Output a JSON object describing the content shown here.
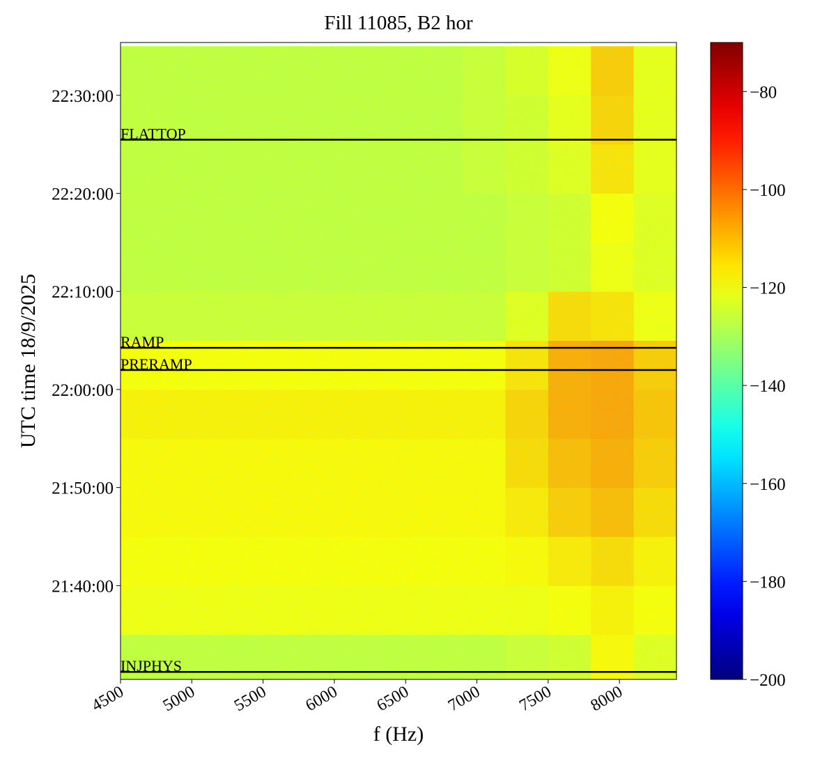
{
  "chart_data": {
    "type": "heatmap",
    "title": "Fill 11085, B2 hor",
    "x_label": "f (Hz)",
    "y_label": "UTC time 18/9/2025",
    "colormap": "jet",
    "xlim": [
      4500,
      8400
    ],
    "xticks": [
      4500,
      5000,
      5500,
      6000,
      6500,
      7000,
      7500,
      8000
    ],
    "ylim": [
      77426,
      81323
    ],
    "yticks": [
      {
        "value": 78000,
        "label": "21:40:00"
      },
      {
        "value": 78600,
        "label": "21:50:00"
      },
      {
        "value": 79200,
        "label": "22:00:00"
      },
      {
        "value": 79800,
        "label": "22:10:00"
      },
      {
        "value": 80400,
        "label": "22:20:00"
      },
      {
        "value": 81000,
        "label": "22:30:00"
      }
    ],
    "zlim": [
      -200,
      -70
    ],
    "zticks": [
      {
        "value": -200,
        "label": "−200"
      },
      {
        "value": -180,
        "label": "−180"
      },
      {
        "value": -160,
        "label": "−160"
      },
      {
        "value": -140,
        "label": "−140"
      },
      {
        "value": -120,
        "label": "−120"
      },
      {
        "value": -100,
        "label": "−100"
      },
      {
        "value": -80,
        "label": "−80"
      }
    ],
    "x_edges": [
      4500,
      4800,
      5100,
      5400,
      5700,
      6000,
      6300,
      6600,
      6900,
      7200,
      7500,
      7800,
      8100,
      8400
    ],
    "y_edges": [
      77400,
      77700,
      78000,
      78300,
      78600,
      78900,
      79200,
      79500,
      79800,
      80100,
      80400,
      80700,
      81000,
      81300
    ],
    "z": [
      [
        -126,
        -126,
        -126,
        -126,
        -126,
        -126,
        -126,
        -126,
        -126,
        -125,
        -124,
        -118,
        -122
      ],
      [
        -120,
        -120,
        -120,
        -120,
        -120,
        -120,
        -120,
        -120,
        -120,
        -120,
        -119,
        -117,
        -119
      ],
      [
        -119,
        -119,
        -119,
        -119,
        -119,
        -119,
        -119,
        -119,
        -119,
        -118,
        -116,
        -114,
        -117
      ],
      [
        -118,
        -118,
        -118,
        -118,
        -118,
        -118,
        -118,
        -118,
        -118,
        -116,
        -112,
        -110,
        -114
      ],
      [
        -118,
        -118,
        -118,
        -118,
        -118,
        -118,
        -118,
        -118,
        -118,
        -114,
        -110,
        -108,
        -112
      ],
      [
        -117,
        -117,
        -117,
        -117,
        -117,
        -117,
        -117,
        -117,
        -117,
        -113,
        -108,
        -107,
        -111
      ],
      [
        -119,
        -119,
        -119,
        -119,
        -119,
        -119,
        -119,
        -119,
        -119,
        -115,
        -108,
        -107,
        -112
      ],
      [
        -125,
        -125,
        -125,
        -125,
        -125,
        -125,
        -125,
        -125,
        -125,
        -122,
        -114,
        -115,
        -120
      ],
      [
        -126,
        -126,
        -126,
        -126,
        -126,
        -126,
        -126,
        -126,
        -126,
        -125,
        -124,
        -120,
        -122
      ],
      [
        -126,
        -126,
        -126,
        -126,
        -126,
        -126,
        -126,
        -126,
        -126,
        -125,
        -124,
        -119,
        -122
      ],
      [
        -126,
        -126,
        -126,
        -126,
        -126,
        -126,
        -126,
        -126,
        -125,
        -124,
        -122,
        -115,
        -121
      ],
      [
        -126,
        -126,
        -126,
        -126,
        -126,
        -126,
        -126,
        -126,
        -125,
        -124,
        -121,
        -113,
        -121
      ],
      [
        -126,
        -126,
        -126,
        -126,
        -126,
        -126,
        -126,
        -126,
        -125,
        -123,
        -120,
        -112,
        -121
      ]
    ],
    "events": [
      {
        "label": "FLATTOP",
        "value": 80728
      },
      {
        "label": "RAMP",
        "value": 79455
      },
      {
        "label": "PRERAMP",
        "value": 79319
      },
      {
        "label": "INJPHYS",
        "value": 77472
      }
    ]
  }
}
